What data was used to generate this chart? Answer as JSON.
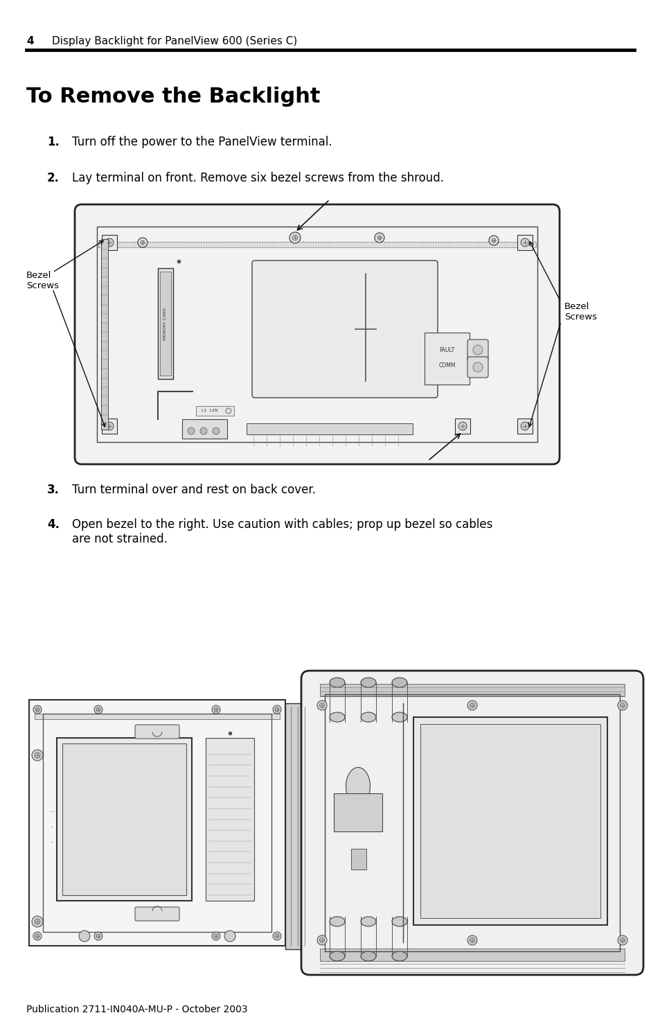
{
  "bg_color": "#ffffff",
  "page_number": "4",
  "header_text": "Display Backlight for PanelView 600 (Series C)",
  "title": "To Remove the Backlight",
  "step1_num": "1.",
  "step1_text": "Turn off the power to the PanelView terminal.",
  "step2_num": "2.",
  "step2_text": "Lay terminal on front. Remove six bezel screws from the shroud.",
  "step3_num": "3.",
  "step3_text": "Turn terminal over and rest on back cover.",
  "step4_num": "4.",
  "step4_text": "Open bezel to the right. Use caution with cables; prop up bezel so cables\nare not strained.",
  "footer_text": "Publication 2711-IN040A-MU-P - October 2003",
  "bezel_screws_left": "Bezel\nScrews",
  "bezel_screws_right": "Bezel\nScrews",
  "line_color": "#000000",
  "text_color": "#000000"
}
